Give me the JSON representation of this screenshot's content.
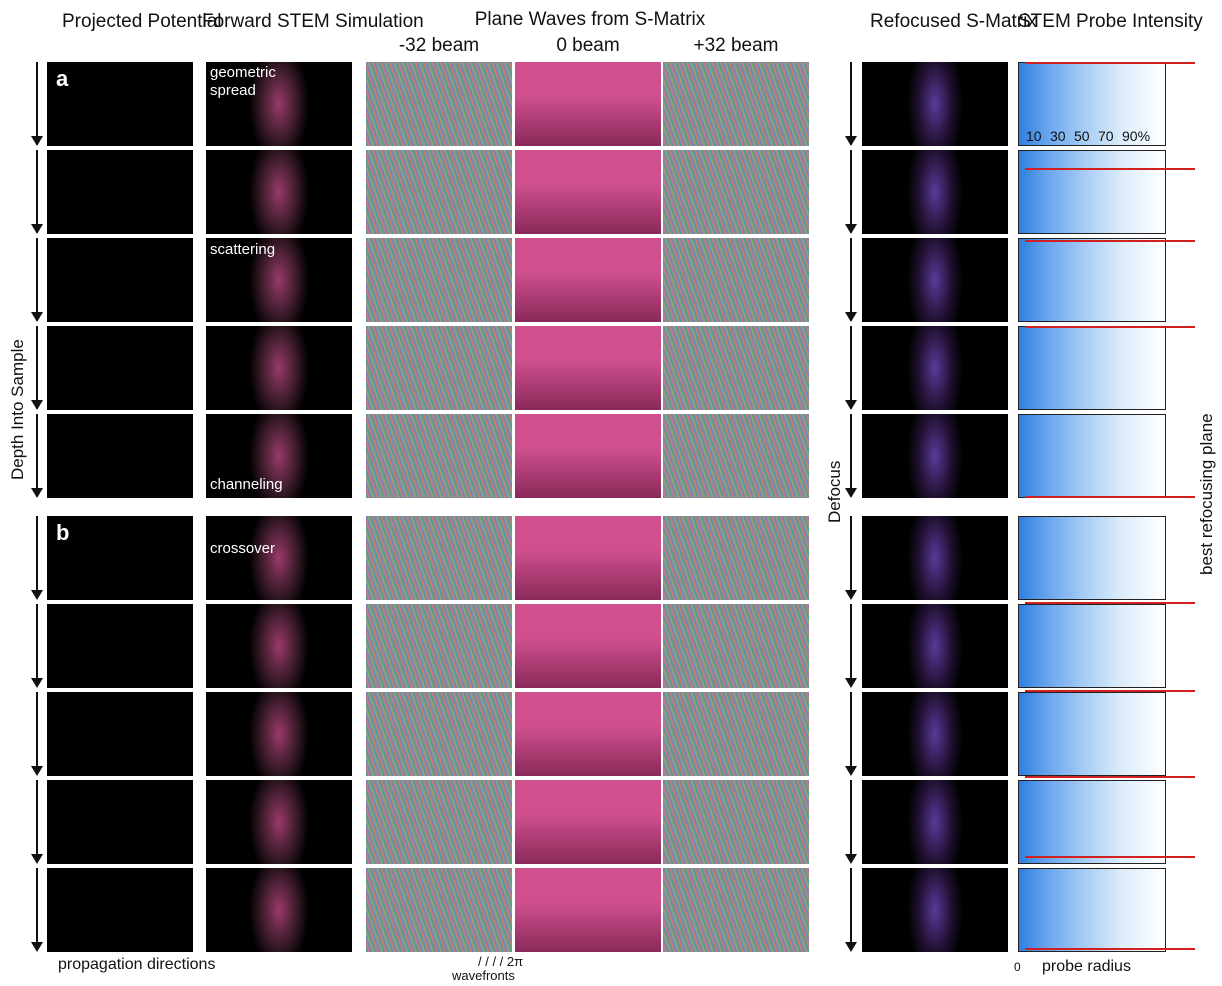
{
  "headers": {
    "projected": "Projected Potential",
    "forward": "Forward STEM Simulation",
    "plane_waves": "Plane Waves from S-Matrix",
    "beam_minus": "-32 beam",
    "beam_zero": "0 beam",
    "beam_plus": "+32 beam",
    "refocused": "Refocused S-Matrix",
    "stem_probe": "STEM Probe Intensity"
  },
  "annotations": {
    "geometric_spread": "geometric spread",
    "scattering": "scattering",
    "channeling": "channeling",
    "crossover": "crossover",
    "panel_a": "a",
    "panel_b": "b",
    "depth": "Depth Into Sample",
    "defocus": "Defocus",
    "best_plane": "best refocusing plane",
    "propagation": "propagation directions",
    "wavefronts_a": "/ / / / 2π",
    "wavefronts_b": "wavefronts",
    "probe_radius": "probe radius",
    "zero": "0"
  },
  "contour_levels": [
    "10",
    "30",
    "50",
    "70",
    "90%"
  ],
  "colors": {
    "contour_dark": "#2f7fe0",
    "contour_light": "#dcecfa",
    "red_line": "#d02020",
    "pink": "#d0508e"
  }
}
